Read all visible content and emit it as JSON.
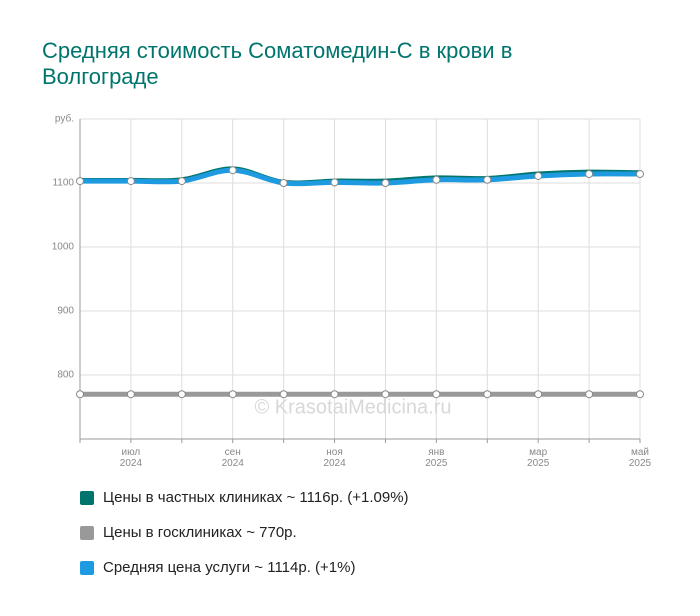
{
  "title": "Средняя стоимость Соматомедин-С в крови в Волгограде",
  "watermark": "© KrasotaiMedicina.ru",
  "chart_data": {
    "type": "line",
    "categories": [
      null,
      "июл 2024",
      null,
      "сен 2024",
      null,
      "ноя 2024",
      null,
      "янв 2025",
      null,
      "мар 2025",
      null,
      "май 2025"
    ],
    "ylim": [
      700,
      1200
    ],
    "yticks": [
      800,
      900,
      1000,
      1100,
      {
        "value": 1200,
        "label": "руб."
      }
    ],
    "grid": true,
    "series": [
      {
        "name": "Цены в частных клиниках ~ 1116р. (+1.09%)",
        "color": "#00756d",
        "markers": false,
        "values": [
          1104,
          1104,
          1105,
          1122,
          1101,
          1103,
          1103,
          1108,
          1107,
          1114,
          1117,
          1116
        ]
      },
      {
        "name": "Цены в госклиниках ~ 770р.",
        "color": "#999999",
        "markers": true,
        "values": [
          770,
          770,
          770,
          770,
          770,
          770,
          770,
          770,
          770,
          770,
          770,
          770
        ]
      },
      {
        "name": "Средняя цена услуги ~ 1114р. (+1%)",
        "color": "#1e9be0",
        "markers": true,
        "values": [
          1103,
          1103,
          1103,
          1120,
          1100,
          1101,
          1100,
          1105,
          1105,
          1111,
          1114,
          1114
        ]
      }
    ]
  }
}
